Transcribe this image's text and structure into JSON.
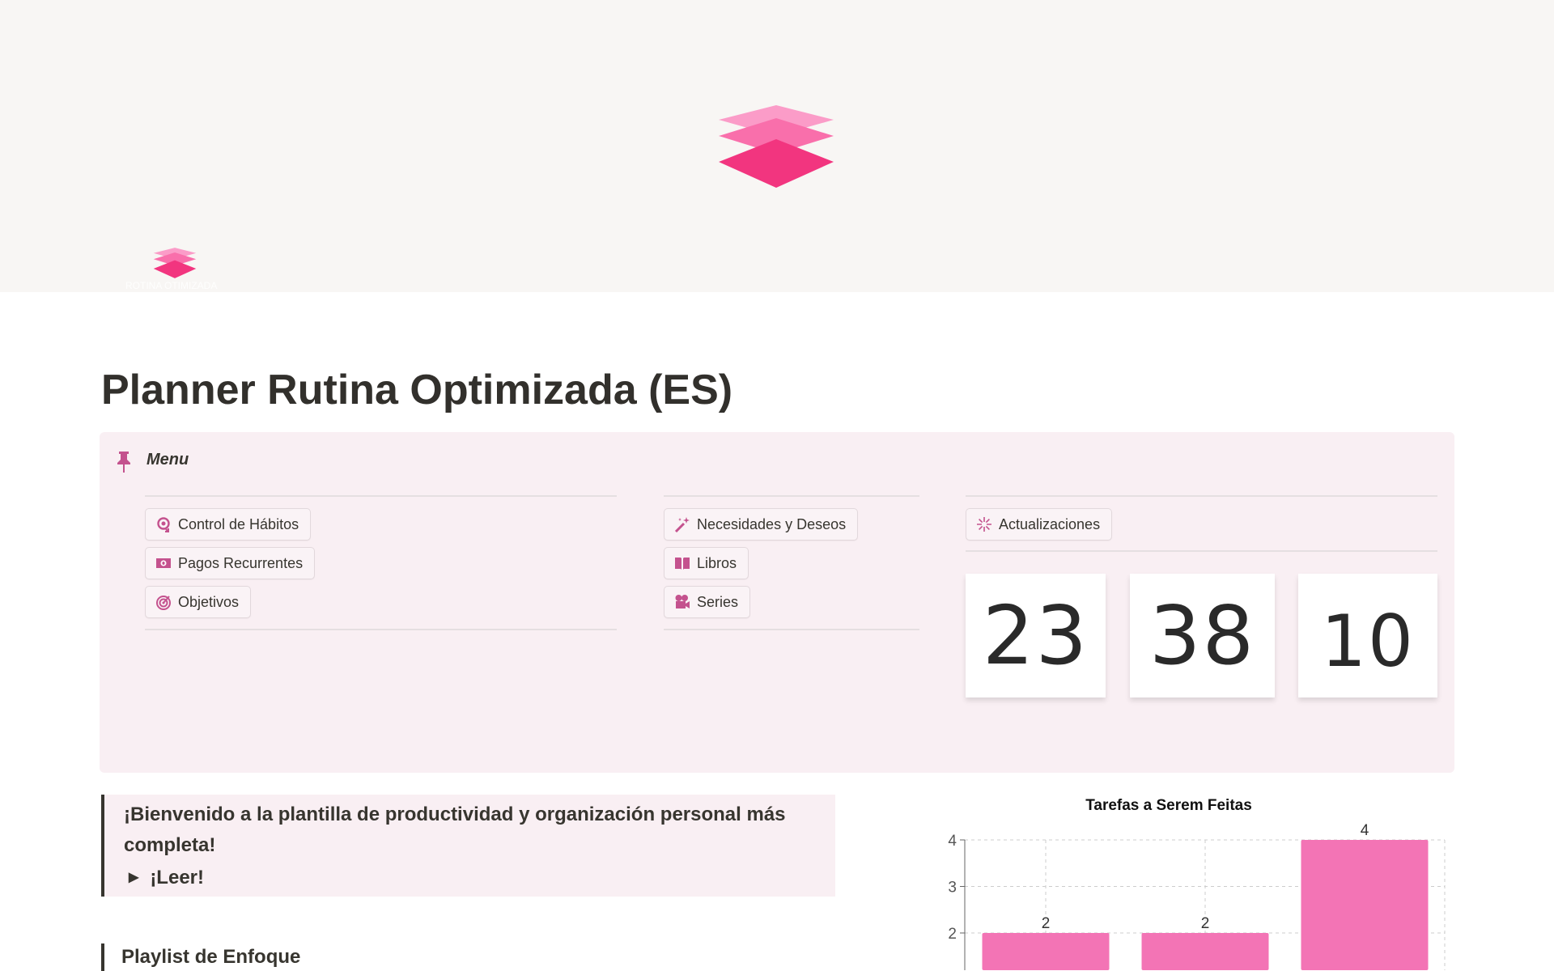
{
  "cover": {
    "logo_text": "ROTINA OTIMIZADA"
  },
  "page": {
    "title": "Planner Rutina Optimizada (ES)"
  },
  "menu": {
    "label": "Menu",
    "col1": [
      {
        "label": "Control de Hábitos",
        "icon": "habit-loop-icon"
      },
      {
        "label": "Pagos Recurrentes",
        "icon": "money-icon"
      },
      {
        "label": "Objetivos",
        "icon": "target-icon"
      }
    ],
    "col2": [
      {
        "label": "Necesidades y Deseos",
        "icon": "magic-wand-icon"
      },
      {
        "label": "Libros",
        "icon": "book-icon"
      },
      {
        "label": "Series",
        "icon": "video-camera-icon"
      }
    ],
    "col3": [
      {
        "label": "Actualizaciones",
        "icon": "sparkle-icon"
      }
    ]
  },
  "clock": {
    "hours": "23",
    "minutes": "38",
    "seconds": "10"
  },
  "welcome": {
    "text": "¡Bienvenido a la plantilla de productividad y organización personal más completa!",
    "toggle": "¡Leer!"
  },
  "playlist": {
    "heading": "Playlist de Enfoque"
  },
  "colors": {
    "accent": "#c4528e",
    "bar": "#f374b5",
    "callout_bg": "#f9eff3",
    "cover_bg": "#f8f6f4"
  },
  "chart_data": {
    "type": "bar",
    "title": "Tarefas a Serem Feitas",
    "values": [
      2,
      2,
      4
    ],
    "data_labels": [
      "2",
      "2",
      "4"
    ],
    "yticks": [
      "2",
      "3",
      "4"
    ],
    "grid": true
  }
}
